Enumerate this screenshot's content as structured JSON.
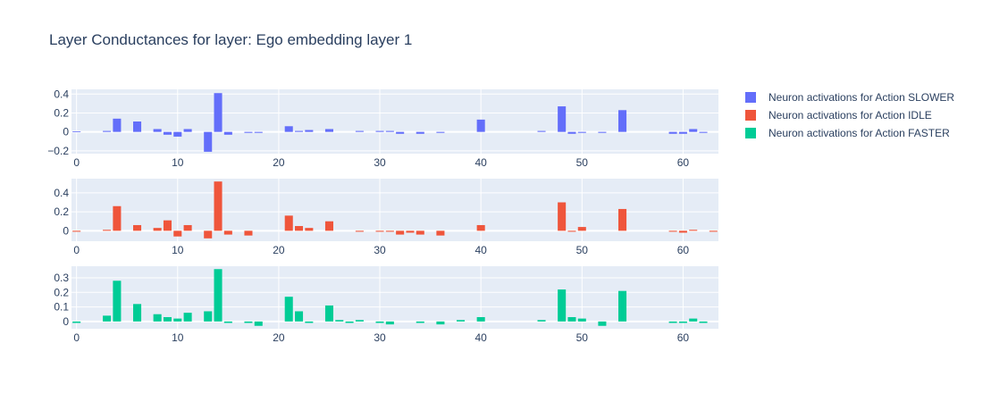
{
  "chart_data": {
    "type": "bar",
    "title": "Layer Conductances for layer: Ego embedding layer 1",
    "x": [
      0,
      1,
      2,
      3,
      4,
      5,
      6,
      7,
      8,
      9,
      10,
      11,
      12,
      13,
      14,
      15,
      16,
      17,
      18,
      19,
      20,
      21,
      22,
      23,
      24,
      25,
      26,
      27,
      28,
      29,
      30,
      31,
      32,
      33,
      34,
      35,
      36,
      37,
      38,
      39,
      40,
      41,
      42,
      43,
      44,
      45,
      46,
      47,
      48,
      49,
      50,
      51,
      52,
      53,
      54,
      55,
      56,
      57,
      58,
      59,
      60,
      61,
      62,
      63
    ],
    "series": [
      {
        "name": "Neuron activations for Action SLOWER",
        "color": "#636efa",
        "values": [
          0.005,
          0,
          0,
          0.01,
          0.14,
          0,
          0.11,
          0,
          0.03,
          -0.03,
          -0.05,
          0.03,
          0,
          -0.21,
          0.41,
          -0.03,
          0,
          -0.01,
          -0.01,
          0,
          0,
          0.06,
          0.01,
          0.02,
          0,
          0.03,
          0,
          0,
          0.01,
          0,
          0.01,
          0.01,
          -0.02,
          0,
          -0.02,
          0,
          -0.01,
          0,
          0,
          0,
          0.13,
          0,
          0,
          0,
          0,
          0,
          0.01,
          0,
          0.27,
          -0.02,
          -0.01,
          0,
          -0.01,
          0,
          0.23,
          0,
          0,
          0,
          0,
          -0.02,
          -0.02,
          0.03,
          -0.01,
          0
        ],
        "yticks": [
          -0.2,
          0,
          0.2,
          0.4
        ],
        "ylim": [
          -0.23,
          0.45
        ]
      },
      {
        "name": "Neuron activations for Action IDLE",
        "color": "#ef553b",
        "values": [
          -0.01,
          0,
          0,
          0.01,
          0.26,
          0,
          0.06,
          0,
          0.03,
          0.11,
          -0.06,
          0.06,
          0,
          -0.08,
          0.52,
          -0.04,
          0,
          -0.05,
          0,
          0,
          0,
          0.16,
          0.05,
          0.03,
          0,
          0.1,
          0,
          0,
          -0.01,
          0,
          -0.01,
          -0.01,
          -0.04,
          -0.02,
          -0.04,
          0,
          -0.05,
          0,
          0,
          0,
          0.06,
          0,
          0,
          0,
          0,
          0,
          0,
          0,
          0.3,
          -0.01,
          0.04,
          0,
          0,
          0,
          0.23,
          0,
          0,
          0,
          0,
          -0.01,
          -0.02,
          0.01,
          0,
          -0.01
        ],
        "yticks": [
          0,
          0.2,
          0.4
        ],
        "ylim": [
          -0.11,
          0.55
        ]
      },
      {
        "name": "Neuron activations for Action FASTER",
        "color": "#00cc96",
        "values": [
          -0.01,
          0,
          0,
          0.04,
          0.28,
          0,
          0.12,
          0,
          0.05,
          0.03,
          0.02,
          0.06,
          0,
          0.07,
          0.36,
          -0.01,
          0,
          -0.01,
          -0.03,
          0,
          0,
          0.17,
          0.07,
          -0.01,
          0,
          0.11,
          0.01,
          -0.01,
          0.01,
          0,
          -0.01,
          -0.02,
          0,
          0,
          -0.01,
          0,
          -0.02,
          0,
          0.01,
          0,
          0.03,
          0,
          0,
          0,
          0,
          0,
          0.01,
          0,
          0.22,
          0.03,
          0.02,
          0,
          -0.03,
          0,
          0.21,
          0,
          0,
          0,
          0,
          -0.01,
          -0.01,
          0.02,
          -0.01,
          0
        ],
        "yticks": [
          0,
          0.1,
          0.2,
          0.3
        ],
        "ylim": [
          -0.05,
          0.38
        ]
      }
    ],
    "xticks": [
      0,
      10,
      20,
      30,
      40,
      50,
      60
    ],
    "xlim": [
      -0.5,
      63.5
    ],
    "legend_position": "top-right",
    "grid": true,
    "plot_background": "#e5ecf6"
  }
}
